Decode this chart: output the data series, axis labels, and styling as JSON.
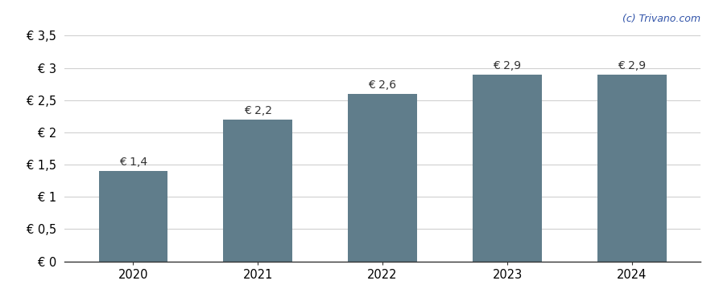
{
  "years": [
    2020,
    2021,
    2022,
    2023,
    2024
  ],
  "values": [
    1.4,
    2.2,
    2.6,
    2.9,
    2.9
  ],
  "labels": [
    "€ 1,4",
    "€ 2,2",
    "€ 2,6",
    "€ 2,9",
    "€ 2,9"
  ],
  "bar_color": "#607d8b",
  "background_color": "#ffffff",
  "ylim": [
    0,
    3.5
  ],
  "yticks": [
    0,
    0.5,
    1.0,
    1.5,
    2.0,
    2.5,
    3.0,
    3.5
  ],
  "ytick_labels": [
    "€ 0",
    "€ 0,5",
    "€ 1",
    "€ 1,5",
    "€ 2",
    "€ 2,5",
    "€ 3",
    "€ 3,5"
  ],
  "watermark": "(c) Trivano.com",
  "bar_width": 0.55,
  "grid_color": "#d0d0d0",
  "tick_label_fontsize": 10.5,
  "bar_label_fontsize": 10,
  "watermark_color": "#3355aa",
  "axis_color": "#333333"
}
